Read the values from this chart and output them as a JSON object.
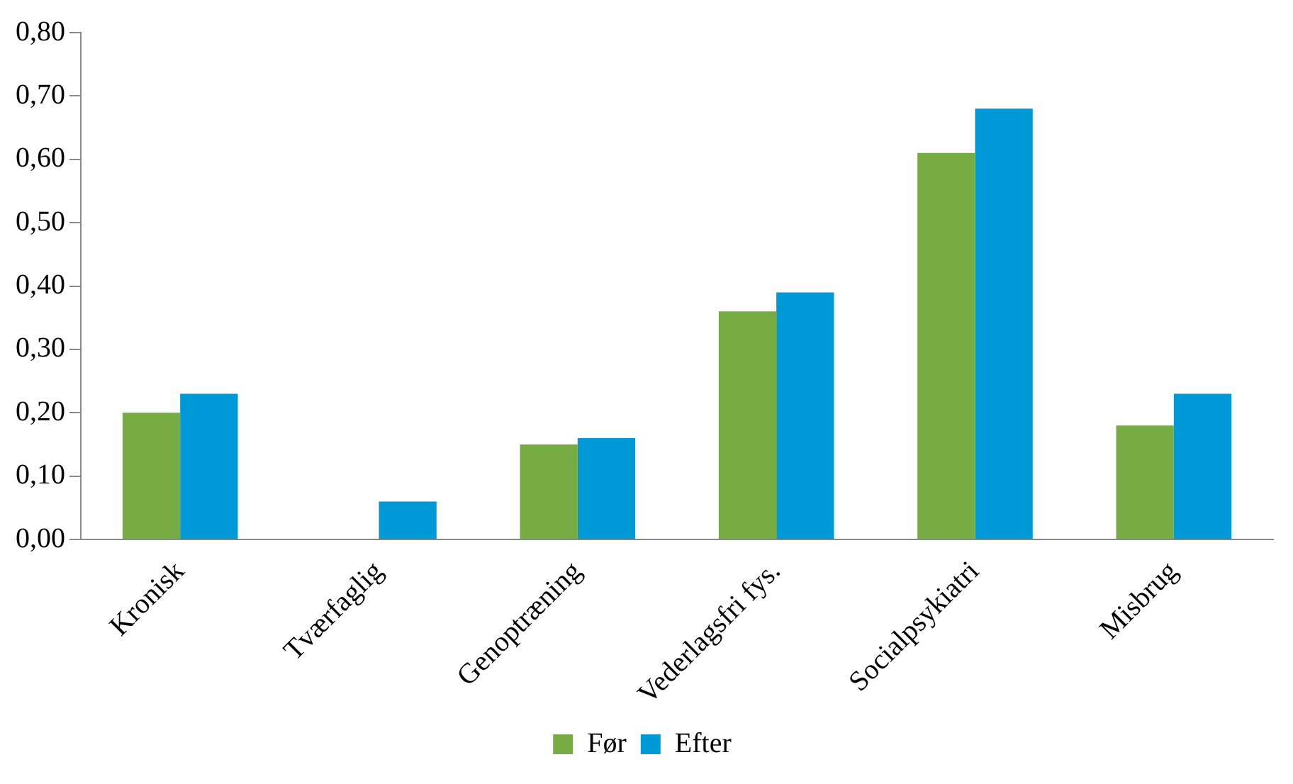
{
  "chart_data": {
    "type": "bar",
    "categories": [
      "Kronisk",
      "Tværfaglig",
      "Genoptræning",
      "Vederlagsfri fys.",
      "Socialpsykiatri",
      "Misbrug"
    ],
    "series": [
      {
        "name": "Før",
        "color": "#77ab43",
        "values": [
          0.2,
          0,
          0.15,
          0.36,
          0.61,
          0.18
        ]
      },
      {
        "name": "Efter",
        "color": "#0099d8",
        "values": [
          0.23,
          0.06,
          0.16,
          0.39,
          0.68,
          0.23
        ]
      }
    ],
    "ylim": [
      0,
      0.8
    ],
    "yticks": [
      {
        "value": 0,
        "label": "0,00"
      },
      {
        "value": 0.1,
        "label": "0,10"
      },
      {
        "value": 0.2,
        "label": "0,20"
      },
      {
        "value": 0.3,
        "label": "0,30"
      },
      {
        "value": 0.4,
        "label": "0,40"
      },
      {
        "value": 0.5,
        "label": "0,50"
      },
      {
        "value": 0.6,
        "label": "0,60"
      },
      {
        "value": 0.7,
        "label": "0,70"
      },
      {
        "value": 0.8,
        "label": "0,80"
      }
    ],
    "grid": false,
    "legend": "bottom"
  }
}
